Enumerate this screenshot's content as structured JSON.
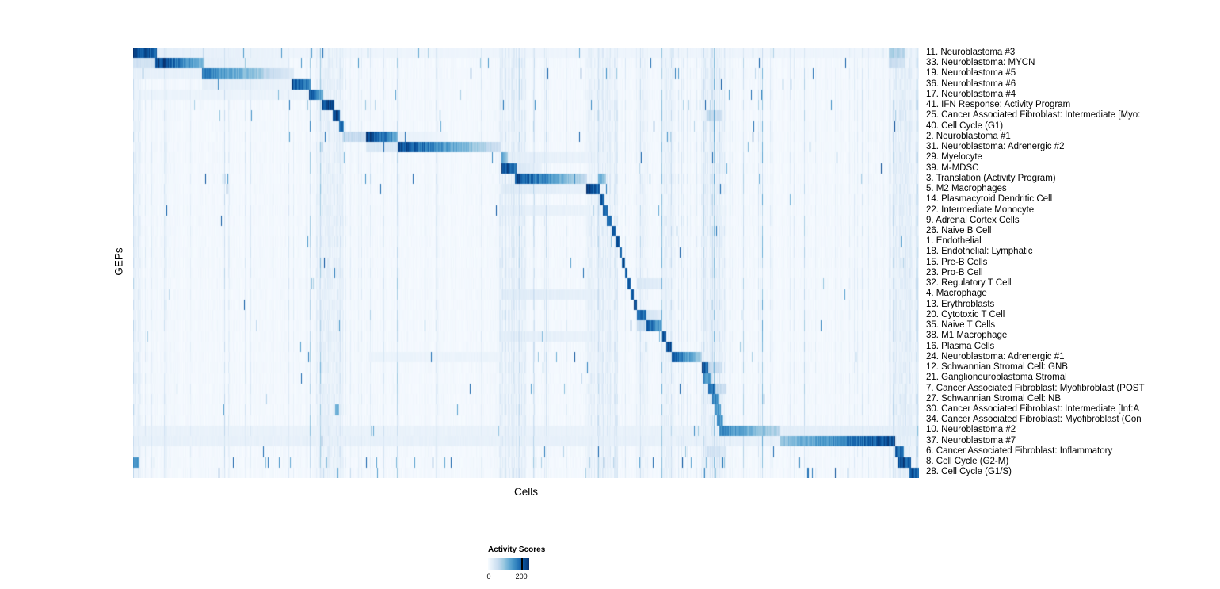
{
  "chart_data": {
    "type": "heatmap",
    "title": "",
    "xlabel": "Cells",
    "ylabel": "GEPs",
    "legend_title": "Activity Scores",
    "legend_ticks": [
      "0",
      "200"
    ],
    "value_range": [
      0,
      200
    ],
    "legend_max_tick_fraction": 0.81,
    "colormap": [
      "#f7fbff",
      "#deebf7",
      "#c6dbef",
      "#9ecae1",
      "#6baed6",
      "#4292c6",
      "#2171b5",
      "#08519c",
      "#08306b"
    ],
    "grid": false,
    "legend_position": "bottom-left",
    "seed": 7,
    "n_rows": 41,
    "column_bands": [
      [
        0.0,
        0.01,
        0.08
      ],
      [
        0.232,
        0.268,
        0.08
      ],
      [
        0.465,
        0.5,
        0.1
      ],
      [
        0.575,
        0.615,
        0.1
      ],
      [
        0.64,
        0.655,
        0.06
      ],
      [
        0.673,
        0.69,
        0.08
      ],
      [
        0.722,
        0.755,
        0.1
      ],
      [
        0.962,
        1.0,
        0.12
      ]
    ],
    "rows": [
      {
        "label": "11. Neuroblastoma #3",
        "blocks": [
          [
            0.0,
            0.03,
            1.0,
            0.8
          ],
          [
            0.03,
            0.2,
            0.1,
            0.06
          ],
          [
            0.2,
            0.96,
            0.05,
            0.05
          ],
          [
            0.962,
            0.982,
            0.35,
            0.3
          ]
        ],
        "scatter": 0.01
      },
      {
        "label": "33. Neuroblastoma: MYCN",
        "blocks": [
          [
            0.0,
            0.028,
            0.2,
            0.2
          ],
          [
            0.028,
            0.091,
            1.0,
            0.45
          ],
          [
            0.091,
            0.2,
            0.1,
            0.05
          ],
          [
            0.962,
            0.982,
            0.25,
            0.2
          ]
        ],
        "scatter": 0.008
      },
      {
        "label": "19. Neuroblastoma #5",
        "blocks": [
          [
            0.0,
            0.088,
            0.08,
            0.08
          ],
          [
            0.088,
            0.165,
            0.75,
            0.35
          ],
          [
            0.165,
            0.205,
            0.3,
            0.12
          ]
        ],
        "scatter": 0.006
      },
      {
        "label": "36. Neuroblastoma #6",
        "blocks": [
          [
            0.088,
            0.202,
            0.1,
            0.07
          ],
          [
            0.202,
            0.226,
            0.9,
            0.7
          ]
        ],
        "scatter": 0.005
      },
      {
        "label": "17. Neuroblastoma #4",
        "blocks": [
          [
            0.0,
            0.224,
            0.06,
            0.06
          ],
          [
            0.224,
            0.242,
            0.9,
            0.5
          ]
        ],
        "scatter": 0.005
      },
      {
        "label": "41. IFN Response: Activity Program",
        "blocks": [
          [
            0.24,
            0.256,
            1.0,
            0.9
          ]
        ],
        "scatter": 0.02
      },
      {
        "label": "25. Cancer Associated Fibroblast: Intermediate [Myo:",
        "blocks": [
          [
            0.254,
            0.263,
            1.0,
            0.9
          ],
          [
            0.73,
            0.75,
            0.3,
            0.2
          ]
        ],
        "scatter": 0.006
      },
      {
        "label": "40. Cell Cycle (G1)",
        "blocks": [
          [
            0.262,
            0.268,
            0.85,
            0.7
          ]
        ],
        "scatter": 0.015
      },
      {
        "label": "2. Neuroblastoma #1",
        "blocks": [
          [
            0.266,
            0.296,
            0.25,
            0.25
          ],
          [
            0.296,
            0.337,
            1.0,
            0.55
          ],
          [
            0.337,
            0.4,
            0.08,
            0.05
          ]
        ],
        "scatter": 0.005
      },
      {
        "label": "31. Neuroblastoma: Adrenergic #2",
        "blocks": [
          [
            0.296,
            0.337,
            0.15,
            0.15
          ],
          [
            0.337,
            0.468,
            0.95,
            0.2
          ]
        ],
        "scatter": 0.004
      },
      {
        "label": "29. Myelocyte",
        "blocks": [
          [
            0.469,
            0.477,
            0.55,
            0.4
          ],
          [
            0.477,
            0.61,
            0.1,
            0.06
          ]
        ],
        "scatter": 0.004
      },
      {
        "label": "39. M-MDSC",
        "blocks": [
          [
            0.469,
            0.488,
            0.95,
            0.75
          ],
          [
            0.488,
            0.52,
            0.15,
            0.08
          ]
        ],
        "scatter": 0.004
      },
      {
        "label": "3. Translation (Activity Program)",
        "blocks": [
          [
            0.486,
            0.578,
            0.95,
            0.25
          ],
          [
            0.592,
            0.602,
            0.5,
            0.4
          ]
        ],
        "scatter": 0.008
      },
      {
        "label": "5. M2 Macrophages",
        "blocks": [
          [
            0.469,
            0.577,
            0.12,
            0.08
          ],
          [
            0.577,
            0.594,
            0.95,
            0.8
          ]
        ],
        "scatter": 0.004
      },
      {
        "label": "14. Plasmacytoid Dendritic Cell",
        "blocks": [
          [
            0.594,
            0.6,
            0.9,
            0.85
          ]
        ],
        "scatter": 0.003
      },
      {
        "label": "22. Intermediate Monocyte",
        "blocks": [
          [
            0.469,
            0.594,
            0.1,
            0.06
          ],
          [
            0.598,
            0.604,
            0.85,
            0.8
          ]
        ],
        "scatter": 0.003
      },
      {
        "label": "9. Adrenal Cortex Cells",
        "blocks": [
          [
            0.603,
            0.609,
            0.9,
            0.85
          ]
        ],
        "scatter": 0.003
      },
      {
        "label": "26. Naive B Cell",
        "blocks": [
          [
            0.609,
            0.614,
            0.9,
            0.85
          ]
        ],
        "scatter": 0.003
      },
      {
        "label": "1. Endothelial",
        "blocks": [
          [
            0.614,
            0.619,
            0.95,
            0.9
          ]
        ],
        "scatter": 0.003
      },
      {
        "label": "18. Endothelial: Lymphatic",
        "blocks": [
          [
            0.619,
            0.622,
            0.9,
            0.85
          ]
        ],
        "scatter": 0.002
      },
      {
        "label": "15. Pre-B Cells",
        "blocks": [
          [
            0.622,
            0.626,
            0.9,
            0.85
          ]
        ],
        "scatter": 0.002
      },
      {
        "label": "23. Pro-B Cell",
        "blocks": [
          [
            0.626,
            0.629,
            0.9,
            0.85
          ]
        ],
        "scatter": 0.002
      },
      {
        "label": "32. Regulatory T Cell",
        "blocks": [
          [
            0.629,
            0.633,
            0.9,
            0.85
          ],
          [
            0.641,
            0.673,
            0.15,
            0.1
          ]
        ],
        "scatter": 0.002
      },
      {
        "label": "4. Macrophage",
        "blocks": [
          [
            0.469,
            0.594,
            0.12,
            0.08
          ],
          [
            0.633,
            0.637,
            0.9,
            0.85
          ]
        ],
        "scatter": 0.003
      },
      {
        "label": "13. Erythroblasts",
        "blocks": [
          [
            0.637,
            0.641,
            0.9,
            0.85
          ]
        ],
        "scatter": 0.002
      },
      {
        "label": "20. Cytotoxic T Cell",
        "blocks": [
          [
            0.641,
            0.653,
            0.9,
            0.75
          ],
          [
            0.653,
            0.673,
            0.2,
            0.1
          ]
        ],
        "scatter": 0.003
      },
      {
        "label": "35. Naive T Cells",
        "blocks": [
          [
            0.641,
            0.653,
            0.25,
            0.25
          ],
          [
            0.653,
            0.673,
            0.9,
            0.55
          ]
        ],
        "scatter": 0.003
      },
      {
        "label": "38. M1 Macrophage",
        "blocks": [
          [
            0.469,
            0.594,
            0.1,
            0.07
          ],
          [
            0.673,
            0.678,
            0.85,
            0.8
          ]
        ],
        "scatter": 0.003
      },
      {
        "label": "16. Plasma Cells",
        "blocks": [
          [
            0.678,
            0.685,
            0.9,
            0.85
          ]
        ],
        "scatter": 0.002
      },
      {
        "label": "24. Neuroblastoma: Adrenergic #1",
        "blocks": [
          [
            0.3,
            0.468,
            0.06,
            0.06
          ],
          [
            0.685,
            0.724,
            0.9,
            0.35
          ]
        ],
        "scatter": 0.003
      },
      {
        "label": "12. Schwannian Stromal Cell: GNB",
        "blocks": [
          [
            0.724,
            0.732,
            0.9,
            0.8
          ],
          [
            0.732,
            0.75,
            0.3,
            0.2
          ]
        ],
        "scatter": 0.003
      },
      {
        "label": "21. Ganglioneuroblastoma Stromal",
        "blocks": [
          [
            0.726,
            0.736,
            0.7,
            0.55
          ]
        ],
        "scatter": 0.003
      },
      {
        "label": "7. Cancer Associated Fibroblast: Myofibroblast (POST",
        "blocks": [
          [
            0.732,
            0.741,
            0.9,
            0.75
          ],
          [
            0.741,
            0.755,
            0.3,
            0.2
          ]
        ],
        "scatter": 0.003
      },
      {
        "label": "27. Schwannian Stromal Cell: NB",
        "blocks": [
          [
            0.737,
            0.745,
            0.75,
            0.6
          ]
        ],
        "scatter": 0.003
      },
      {
        "label": "30. Cancer Associated Fibroblast: Intermediate [Inf:A",
        "blocks": [
          [
            0.257,
            0.262,
            0.5,
            0.5
          ],
          [
            0.74,
            0.748,
            0.7,
            0.55
          ]
        ],
        "scatter": 0.003
      },
      {
        "label": "34. Cancer Associated Fibroblast: Myofibroblast (Con",
        "blocks": [
          [
            0.743,
            0.751,
            0.7,
            0.55
          ]
        ],
        "scatter": 0.003
      },
      {
        "label": "10. Neuroblastoma #2",
        "blocks": [
          [
            0.0,
            0.746,
            0.07,
            0.07
          ],
          [
            0.746,
            0.824,
            0.7,
            0.3
          ],
          [
            0.824,
            1.0,
            0.1,
            0.1
          ]
        ],
        "scatter": 0.004
      },
      {
        "label": "37. Neuroblastoma #7",
        "blocks": [
          [
            0.0,
            0.824,
            0.08,
            0.08
          ],
          [
            0.824,
            0.97,
            0.4,
            0.95
          ]
        ],
        "scatter": 0.004
      },
      {
        "label": "6. Cancer Associated Fibroblast: Inflammatory",
        "blocks": [
          [
            0.73,
            0.755,
            0.2,
            0.15
          ],
          [
            0.97,
            0.981,
            0.85,
            0.75
          ]
        ],
        "scatter": 0.003
      },
      {
        "label": "8. Cell Cycle (G2-M)",
        "blocks": [
          [
            0.0,
            0.008,
            0.7,
            0.6
          ],
          [
            0.973,
            0.99,
            0.95,
            0.85
          ]
        ],
        "scatter": 0.02
      },
      {
        "label": "28. Cell Cycle (G1/S)",
        "blocks": [
          [
            0.988,
            1.0,
            0.9,
            0.85
          ]
        ],
        "scatter": 0.015
      }
    ]
  }
}
